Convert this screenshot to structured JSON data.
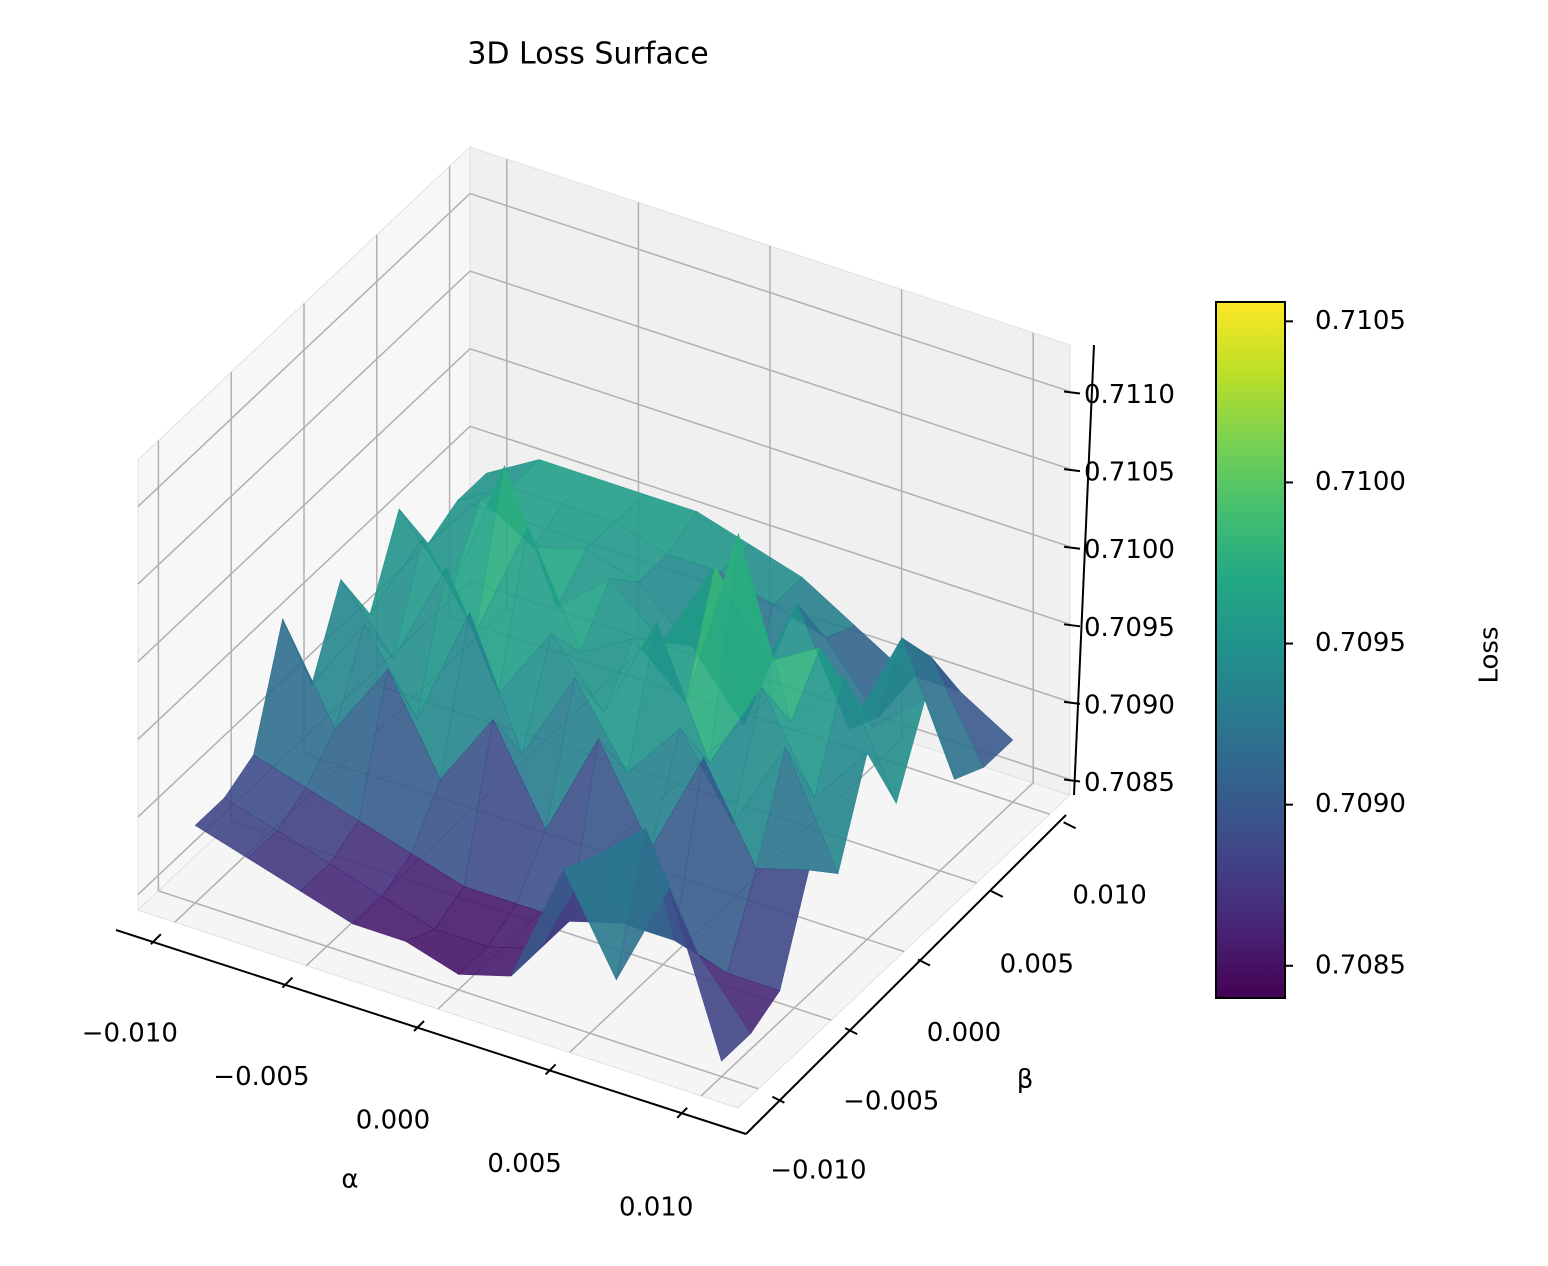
{
  "chart_data": {
    "type": "surface",
    "title": "3D Loss Surface",
    "xlabel": "α",
    "ylabel": "β",
    "zlabel": "Loss",
    "x": [
      -0.01,
      -0.008,
      -0.006,
      -0.004,
      -0.002,
      0,
      0.002,
      0.004,
      0.006,
      0.008,
      0.01
    ],
    "y": [
      -0.01,
      -0.008,
      -0.006,
      -0.004,
      -0.002,
      0,
      0.002,
      0.004,
      0.006,
      0.008,
      0.01
    ],
    "z": [
      [
        0.7089,
        0.7088,
        0.7087,
        0.7086,
        0.7086,
        0.7085,
        0.7086,
        0.7094,
        0.7088,
        0.7095,
        0.7085
      ],
      [
        0.7089,
        0.7088,
        0.7087,
        0.7086,
        0.7085,
        0.7085,
        0.7086,
        0.7093,
        0.7096,
        0.7089,
        0.7085
      ],
      [
        0.709,
        0.7089,
        0.7088,
        0.7087,
        0.7086,
        0.7086,
        0.7086,
        0.7087,
        0.7087,
        0.7086,
        0.7086
      ],
      [
        0.7097,
        0.7091,
        0.7096,
        0.709,
        0.7095,
        0.7089,
        0.7096,
        0.709,
        0.7097,
        0.7091,
        0.7092
      ],
      [
        0.7091,
        0.7096,
        0.7091,
        0.7099,
        0.7091,
        0.7097,
        0.7092,
        0.7096,
        0.7091,
        0.7097,
        0.709
      ],
      [
        0.7096,
        0.7092,
        0.7099,
        0.7092,
        0.7097,
        0.7093,
        0.71,
        0.7092,
        0.7098,
        0.7092,
        0.7096
      ],
      [
        0.7092,
        0.7098,
        0.7093,
        0.7101,
        0.7094,
        0.7096,
        0.7093,
        0.7105,
        0.7094,
        0.7098,
        0.7091
      ],
      [
        0.7097,
        0.7093,
        0.7102,
        0.7094,
        0.7097,
        0.7094,
        0.71,
        0.7095,
        0.7097,
        0.7093,
        0.7096
      ],
      [
        0.7093,
        0.7097,
        0.7095,
        0.7096,
        0.7095,
        0.7092,
        0.7088,
        0.7097,
        0.709,
        0.7097,
        0.7089
      ],
      [
        0.7094,
        0.7096,
        0.7096,
        0.7096,
        0.7095,
        0.7095,
        0.7094,
        0.7093,
        0.7089,
        0.7094,
        0.7088
      ],
      [
        0.7094,
        0.7096,
        0.7096,
        0.7096,
        0.7096,
        0.7095,
        0.7094,
        0.7092,
        0.709,
        0.709,
        0.7088
      ]
    ],
    "xlim": [
      -0.0114,
      0.0114
    ],
    "ylim": [
      -0.0114,
      0.0114
    ],
    "zlim": [
      0.7084,
      0.7113
    ],
    "xticks": [
      {
        "value": -0.01,
        "label": "−0.010"
      },
      {
        "value": -0.005,
        "label": "−0.005"
      },
      {
        "value": 0,
        "label": "0.000"
      },
      {
        "value": 0.005,
        "label": "0.005"
      },
      {
        "value": 0.01,
        "label": "0.010"
      }
    ],
    "yticks": [
      {
        "value": -0.01,
        "label": "−0.010"
      },
      {
        "value": -0.005,
        "label": "−0.005"
      },
      {
        "value": 0,
        "label": "0.000"
      },
      {
        "value": 0.005,
        "label": "0.005"
      },
      {
        "value": 0.01,
        "label": "0.010"
      }
    ],
    "zticks": [
      {
        "value": 0.7085,
        "label": "0.7085"
      },
      {
        "value": 0.709,
        "label": "0.7090"
      },
      {
        "value": 0.7095,
        "label": "0.7095"
      },
      {
        "value": 0.71,
        "label": "0.7100"
      },
      {
        "value": 0.7105,
        "label": "0.7105"
      },
      {
        "value": 0.711,
        "label": "0.7110"
      }
    ],
    "grid": true,
    "colormap": "viridis",
    "surface_alpha": 0.9,
    "clim": [
      0.7084,
      0.71056
    ],
    "colorbar": {
      "label": "Loss",
      "ticks": [
        {
          "value": 0.7085,
          "label": "0.7085"
        },
        {
          "value": 0.709,
          "label": "0.7090"
        },
        {
          "value": 0.7095,
          "label": "0.7095"
        },
        {
          "value": 0.71,
          "label": "0.7100"
        },
        {
          "value": 0.7105,
          "label": "0.7105"
        }
      ]
    }
  }
}
